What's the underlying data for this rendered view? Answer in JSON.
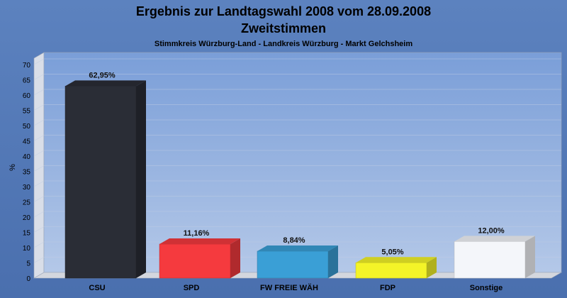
{
  "chart_data": {
    "type": "bar",
    "title": "Ergebnis zur Landtagswahl 2008 vom 28.09.2008",
    "subtitle": "Zweitstimmen",
    "subsubtitle": "Stimmkreis Würzburg-Land - Landkreis Würzburg - Markt Gelchsheim",
    "ylabel": "%",
    "xlabel": "",
    "ylim": [
      0,
      70
    ],
    "yticks": [
      "0",
      "5",
      "10",
      "15",
      "20",
      "25",
      "30",
      "35",
      "40",
      "45",
      "50",
      "55",
      "60",
      "65",
      "70"
    ],
    "categories": [
      "CSU",
      "SPD",
      "FW FREIE WÄH",
      "FDP",
      "Sonstige"
    ],
    "values": [
      62.95,
      11.16,
      8.84,
      5.05,
      12.0
    ],
    "value_labels": [
      "62,95%",
      "11,16%",
      "8,84%",
      "5,05%",
      "12,00%"
    ],
    "colors": [
      "#2a2d36",
      "#f53a3e",
      "#3a9fd6",
      "#f4f428",
      "#f4f6fa"
    ],
    "grid": true,
    "legend": "none"
  }
}
